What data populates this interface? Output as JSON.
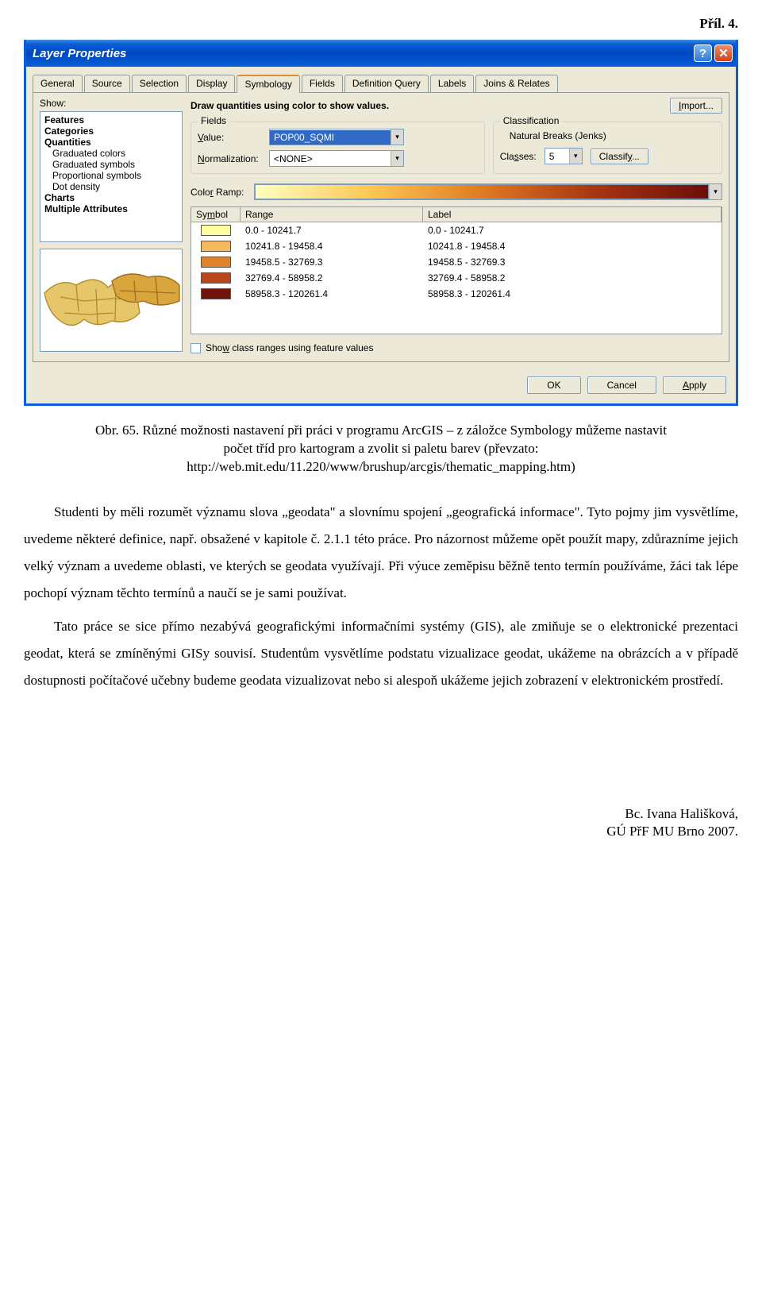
{
  "page": {
    "top_label": "Příl. 4.",
    "figure_caption": "Obr. 65. Různé možnosti nastavení při práci v programu ArcGIS – z záložce Symbology můžeme nastavit počet tříd pro kartogram a zvolit si paletu barev (převzato: http://web.mit.edu/11.220/www/brushup/arcgis/thematic_mapping.htm)",
    "para1": "Studenti by měli rozumět významu slova „geodata\" a slovnímu spojení „geografická informace\". Tyto pojmy jim vysvětlíme, uvedeme některé definice, např. obsažené v kapitole č. 2.1.1 této práce. Pro názornost můžeme opět použít mapy, zdůrazníme jejich velký význam a uvedeme oblasti, ve kterých se geodata využívají. Při výuce zeměpisu běžně tento termín používáme, žáci tak lépe pochopí význam těchto termínů a naučí se je sami používat.",
    "para2": "Tato práce se sice přímo nezabývá geografickými informačními systémy (GIS), ale zmiňuje se o elektronické prezentaci geodat, která se zmíněnými GISy souvisí. Studentům vysvětlíme podstatu vizualizace geodat, ukážeme na obrázcích a v případě dostupnosti počítačové učebny budeme geodata vizualizovat nebo si alespoň ukážeme jejich zobrazení v elektronickém prostředí.",
    "footer1": "Bc. Ivana Hališková,",
    "footer2": "GÚ PřF MU Brno 2007."
  },
  "win": {
    "title": "Layer Properties",
    "tabs": {
      "general": "General",
      "source": "Source",
      "selection": "Selection",
      "display": "Display",
      "symbology": "Symbology",
      "fields": "Fields",
      "defquery": "Definition Query",
      "labels": "Labels",
      "joins": "Joins & Relates"
    },
    "show_label": "Show:",
    "show_items": {
      "features": "Features",
      "categories": "Categories",
      "quantities": "Quantities",
      "gc": "Graduated colors",
      "gs": "Graduated symbols",
      "ps": "Proportional symbols",
      "dd": "Dot density",
      "charts": "Charts",
      "ma": "Multiple Attributes"
    },
    "desc": "Draw quantities using color to show values.",
    "import": "Import...",
    "fields": {
      "legend": "Fields",
      "value_lbl": "Value:",
      "value": "POP00_SQMI",
      "norm_lbl": "Normalization:",
      "norm": "<NONE>"
    },
    "class": {
      "legend": "Classification",
      "method": "Natural Breaks (Jenks)",
      "classes_lbl": "Classes:",
      "classes": "5",
      "classify": "Classify..."
    },
    "ramp_lbl": "Color Ramp:",
    "table": {
      "h_symbol": "Symbol",
      "h_range": "Range",
      "h_label": "Label",
      "rows": [
        {
          "color": "#ffffa0",
          "range": "0.0 - 10241.7",
          "label": "0.0 - 10241.7"
        },
        {
          "color": "#f4b95d",
          "range": "10241.8 - 19458.4",
          "label": "10241.8 - 19458.4"
        },
        {
          "color": "#e0832f",
          "range": "19458.5 - 32769.3",
          "label": "19458.5 - 32769.3"
        },
        {
          "color": "#b8471b",
          "range": "32769.4 - 58958.2",
          "label": "32769.4 - 58958.2"
        },
        {
          "color": "#72120b",
          "range": "58958.3 - 120261.4",
          "label": "58958.3 - 120261.4"
        }
      ]
    },
    "chk": "Show class ranges using feature values",
    "buttons": {
      "ok": "OK",
      "cancel": "Cancel",
      "apply": "Apply"
    }
  }
}
